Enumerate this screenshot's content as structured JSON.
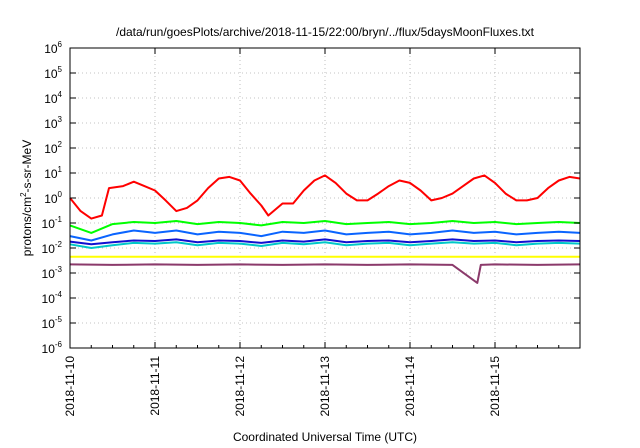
{
  "chart_data": {
    "type": "line",
    "title": "/data/run/goesPlots/archive/2018-11-15/22:00/bryn/../flux/5daysMoonFluxes.txt",
    "xlabel": "Coordinated Universal Time (UTC)",
    "ylabel": {
      "base": "protons/cm",
      "sup": "2",
      "rest": "-s-sr-MeV"
    },
    "y_scale": "log",
    "ylim": [
      1e-06,
      1000000.0
    ],
    "y_ticks": [
      {
        "exp": "-6",
        "value": 1e-06
      },
      {
        "exp": "-5",
        "value": 1e-05
      },
      {
        "exp": "-4",
        "value": 0.0001
      },
      {
        "exp": "-3",
        "value": 0.001
      },
      {
        "exp": "-2",
        "value": 0.01
      },
      {
        "exp": "-1",
        "value": 0.1
      },
      {
        "exp": "0",
        "value": 1
      },
      {
        "exp": "1",
        "value": 10.0
      },
      {
        "exp": "2",
        "value": 100.0
      },
      {
        "exp": "3",
        "value": 1000.0
      },
      {
        "exp": "4",
        "value": 10000.0
      },
      {
        "exp": "5",
        "value": 100000.0
      },
      {
        "exp": "6",
        "value": 1000000.0
      }
    ],
    "xlim": [
      "2018-11-10T00:00",
      "2018-11-16T00:00"
    ],
    "x_ticks": [
      "2018-11-10",
      "2018-11-11",
      "2018-11-12",
      "2018-11-13",
      "2018-11-14",
      "2018-11-15"
    ],
    "grid": true,
    "legend": "none",
    "series": [
      {
        "color": "#ff0000",
        "values": [
          [
            "2018-11-10T00:00",
            1.0
          ],
          [
            "2018-11-10T03:00",
            0.3
          ],
          [
            "2018-11-10T06:00",
            0.15
          ],
          [
            "2018-11-10T09:00",
            0.2
          ],
          [
            "2018-11-10T11:00",
            2.5
          ],
          [
            "2018-11-10T15:00",
            3.0
          ],
          [
            "2018-11-10T18:00",
            4.5
          ],
          [
            "2018-11-10T21:00",
            3.0
          ],
          [
            "2018-11-11T00:00",
            2.0
          ],
          [
            "2018-11-11T03:00",
            0.8
          ],
          [
            "2018-11-11T06:00",
            0.3
          ],
          [
            "2018-11-11T09:00",
            0.4
          ],
          [
            "2018-11-11T12:00",
            0.8
          ],
          [
            "2018-11-11T15:00",
            2.5
          ],
          [
            "2018-11-11T18:00",
            6.0
          ],
          [
            "2018-11-11T21:00",
            7.0
          ],
          [
            "2018-11-12T00:00",
            5.0
          ],
          [
            "2018-11-12T03:00",
            1.5
          ],
          [
            "2018-11-12T06:00",
            0.5
          ],
          [
            "2018-11-12T08:00",
            0.2
          ],
          [
            "2018-11-12T12:00",
            0.6
          ],
          [
            "2018-11-12T15:00",
            0.6
          ],
          [
            "2018-11-12T18:00",
            2.0
          ],
          [
            "2018-11-12T21:00",
            5.0
          ],
          [
            "2018-11-13T00:00",
            8.0
          ],
          [
            "2018-11-13T03:00",
            4.0
          ],
          [
            "2018-11-13T06:00",
            1.5
          ],
          [
            "2018-11-13T09:00",
            0.8
          ],
          [
            "2018-11-13T12:00",
            0.8
          ],
          [
            "2018-11-13T15:00",
            1.5
          ],
          [
            "2018-11-13T18:00",
            3.0
          ],
          [
            "2018-11-13T21:00",
            5.0
          ],
          [
            "2018-11-14T00:00",
            4.0
          ],
          [
            "2018-11-14T03:00",
            2.0
          ],
          [
            "2018-11-14T06:00",
            0.8
          ],
          [
            "2018-11-14T09:00",
            1.0
          ],
          [
            "2018-11-14T12:00",
            1.5
          ],
          [
            "2018-11-14T15:00",
            3.0
          ],
          [
            "2018-11-14T18:00",
            6.0
          ],
          [
            "2018-11-14T21:00",
            8.0
          ],
          [
            "2018-11-15T00:00",
            4.0
          ],
          [
            "2018-11-15T03:00",
            1.5
          ],
          [
            "2018-11-15T06:00",
            0.8
          ],
          [
            "2018-11-15T09:00",
            0.8
          ],
          [
            "2018-11-15T12:00",
            1.0
          ],
          [
            "2018-11-15T15:00",
            2.5
          ],
          [
            "2018-11-15T18:00",
            5.0
          ],
          [
            "2018-11-15T21:00",
            7.0
          ],
          [
            "2018-11-16T00:00",
            6.0
          ]
        ]
      },
      {
        "color": "#00ff00",
        "values": [
          [
            "2018-11-10T00:00",
            0.08
          ],
          [
            "2018-11-10T06:00",
            0.04
          ],
          [
            "2018-11-10T12:00",
            0.09
          ],
          [
            "2018-11-10T18:00",
            0.11
          ],
          [
            "2018-11-11T00:00",
            0.1
          ],
          [
            "2018-11-11T06:00",
            0.12
          ],
          [
            "2018-11-11T12:00",
            0.09
          ],
          [
            "2018-11-11T18:00",
            0.11
          ],
          [
            "2018-11-12T00:00",
            0.1
          ],
          [
            "2018-11-12T06:00",
            0.08
          ],
          [
            "2018-11-12T12:00",
            0.11
          ],
          [
            "2018-11-12T18:00",
            0.1
          ],
          [
            "2018-11-13T00:00",
            0.12
          ],
          [
            "2018-11-13T06:00",
            0.09
          ],
          [
            "2018-11-13T12:00",
            0.1
          ],
          [
            "2018-11-13T18:00",
            0.11
          ],
          [
            "2018-11-14T00:00",
            0.09
          ],
          [
            "2018-11-14T06:00",
            0.1
          ],
          [
            "2018-11-14T12:00",
            0.12
          ],
          [
            "2018-11-14T18:00",
            0.1
          ],
          [
            "2018-11-15T00:00",
            0.11
          ],
          [
            "2018-11-15T06:00",
            0.09
          ],
          [
            "2018-11-15T12:00",
            0.1
          ],
          [
            "2018-11-15T18:00",
            0.11
          ],
          [
            "2018-11-16T00:00",
            0.1
          ]
        ]
      },
      {
        "color": "#0a64ff",
        "values": [
          [
            "2018-11-10T00:00",
            0.03
          ],
          [
            "2018-11-10T06:00",
            0.02
          ],
          [
            "2018-11-10T12:00",
            0.035
          ],
          [
            "2018-11-10T18:00",
            0.05
          ],
          [
            "2018-11-11T00:00",
            0.04
          ],
          [
            "2018-11-11T06:00",
            0.05
          ],
          [
            "2018-11-11T12:00",
            0.035
          ],
          [
            "2018-11-11T18:00",
            0.045
          ],
          [
            "2018-11-12T00:00",
            0.04
          ],
          [
            "2018-11-12T06:00",
            0.03
          ],
          [
            "2018-11-12T12:00",
            0.045
          ],
          [
            "2018-11-12T18:00",
            0.04
          ],
          [
            "2018-11-13T00:00",
            0.05
          ],
          [
            "2018-11-13T06:00",
            0.035
          ],
          [
            "2018-11-13T12:00",
            0.04
          ],
          [
            "2018-11-13T18:00",
            0.045
          ],
          [
            "2018-11-14T00:00",
            0.035
          ],
          [
            "2018-11-14T06:00",
            0.04
          ],
          [
            "2018-11-14T12:00",
            0.05
          ],
          [
            "2018-11-14T18:00",
            0.04
          ],
          [
            "2018-11-15T00:00",
            0.045
          ],
          [
            "2018-11-15T06:00",
            0.035
          ],
          [
            "2018-11-15T12:00",
            0.04
          ],
          [
            "2018-11-15T18:00",
            0.045
          ],
          [
            "2018-11-16T00:00",
            0.04
          ]
        ]
      },
      {
        "color": "#00c8c8",
        "values": [
          [
            "2018-11-10T00:00",
            0.014
          ],
          [
            "2018-11-10T06:00",
            0.01
          ],
          [
            "2018-11-10T12:00",
            0.013
          ],
          [
            "2018-11-10T18:00",
            0.016
          ],
          [
            "2018-11-11T00:00",
            0.015
          ],
          [
            "2018-11-11T06:00",
            0.017
          ],
          [
            "2018-11-11T12:00",
            0.013
          ],
          [
            "2018-11-11T18:00",
            0.016
          ],
          [
            "2018-11-12T00:00",
            0.015
          ],
          [
            "2018-11-12T06:00",
            0.012
          ],
          [
            "2018-11-12T12:00",
            0.016
          ],
          [
            "2018-11-12T18:00",
            0.014
          ],
          [
            "2018-11-13T00:00",
            0.017
          ],
          [
            "2018-11-13T06:00",
            0.013
          ],
          [
            "2018-11-13T12:00",
            0.015
          ],
          [
            "2018-11-13T18:00",
            0.016
          ],
          [
            "2018-11-14T00:00",
            0.013
          ],
          [
            "2018-11-14T06:00",
            0.015
          ],
          [
            "2018-11-14T12:00",
            0.017
          ],
          [
            "2018-11-14T18:00",
            0.015
          ],
          [
            "2018-11-15T00:00",
            0.016
          ],
          [
            "2018-11-15T06:00",
            0.013
          ],
          [
            "2018-11-15T12:00",
            0.015
          ],
          [
            "2018-11-15T18:00",
            0.016
          ],
          [
            "2018-11-16T00:00",
            0.015
          ]
        ]
      },
      {
        "color": "#1010d0",
        "values": [
          [
            "2018-11-10T00:00",
            0.018
          ],
          [
            "2018-11-10T06:00",
            0.014
          ],
          [
            "2018-11-10T12:00",
            0.017
          ],
          [
            "2018-11-10T18:00",
            0.02
          ],
          [
            "2018-11-11T00:00",
            0.019
          ],
          [
            "2018-11-11T06:00",
            0.022
          ],
          [
            "2018-11-11T12:00",
            0.017
          ],
          [
            "2018-11-11T18:00",
            0.02
          ],
          [
            "2018-11-12T00:00",
            0.019
          ],
          [
            "2018-11-12T06:00",
            0.016
          ],
          [
            "2018-11-12T12:00",
            0.02
          ],
          [
            "2018-11-12T18:00",
            0.018
          ],
          [
            "2018-11-13T00:00",
            0.022
          ],
          [
            "2018-11-13T06:00",
            0.017
          ],
          [
            "2018-11-13T12:00",
            0.019
          ],
          [
            "2018-11-13T18:00",
            0.02
          ],
          [
            "2018-11-14T00:00",
            0.017
          ],
          [
            "2018-11-14T06:00",
            0.019
          ],
          [
            "2018-11-14T12:00",
            0.022
          ],
          [
            "2018-11-14T18:00",
            0.019
          ],
          [
            "2018-11-15T00:00",
            0.02
          ],
          [
            "2018-11-15T06:00",
            0.017
          ],
          [
            "2018-11-15T12:00",
            0.019
          ],
          [
            "2018-11-15T18:00",
            0.02
          ],
          [
            "2018-11-16T00:00",
            0.019
          ]
        ]
      },
      {
        "color": "#ffff00",
        "values": [
          [
            "2018-11-10T00:00",
            0.0045
          ],
          [
            "2018-11-11T00:00",
            0.0045
          ],
          [
            "2018-11-12T00:00",
            0.0045
          ],
          [
            "2018-11-13T00:00",
            0.0045
          ],
          [
            "2018-11-14T00:00",
            0.0045
          ],
          [
            "2018-11-15T00:00",
            0.0045
          ],
          [
            "2018-11-16T00:00",
            0.0045
          ]
        ]
      },
      {
        "color": "#8b3a6b",
        "values": [
          [
            "2018-11-10T00:00",
            0.0022
          ],
          [
            "2018-11-10T12:00",
            0.0021
          ],
          [
            "2018-11-11T00:00",
            0.0022
          ],
          [
            "2018-11-11T12:00",
            0.0021
          ],
          [
            "2018-11-12T00:00",
            0.0022
          ],
          [
            "2018-11-12T12:00",
            0.0021
          ],
          [
            "2018-11-13T00:00",
            0.0022
          ],
          [
            "2018-11-13T12:00",
            0.0021
          ],
          [
            "2018-11-14T00:00",
            0.0022
          ],
          [
            "2018-11-14T12:00",
            0.0021
          ],
          [
            "2018-11-14T19:00",
            0.0004
          ],
          [
            "2018-11-14T20:00",
            0.0021
          ],
          [
            "2018-11-15T00:00",
            0.0022
          ],
          [
            "2018-11-15T12:00",
            0.0021
          ],
          [
            "2018-11-16T00:00",
            0.0022
          ]
        ]
      }
    ]
  }
}
